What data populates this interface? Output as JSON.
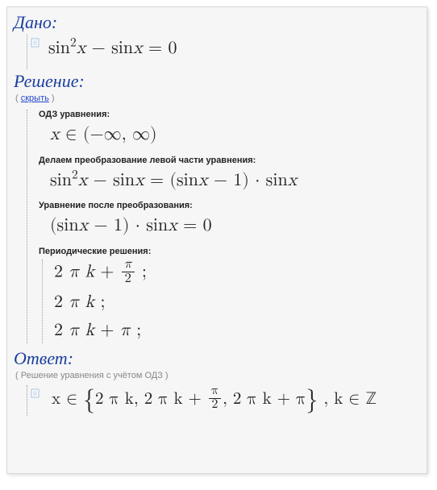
{
  "colors": {
    "background": "#f6f6f6",
    "border": "#d8d8d8",
    "title": "#1a3ea0",
    "text": "#222222",
    "muted": "#888888",
    "link": "#2244cc",
    "dotted": "#999999"
  },
  "given": {
    "title": "Дано:",
    "equation_html": "sin<span class='sup'>2</span><span class='it'>x</span> − sin<span class='it'>x</span> = 0"
  },
  "solution": {
    "title": "Решение:",
    "hide_prefix": "( ",
    "hide_link": "скрыть",
    "hide_suffix": " )",
    "domain_label": "ОДЗ уравнения:",
    "domain_html": "<span class='it'>x</span> ∈ (−∞, ∞)",
    "transform_label": "Делаем преобразование левой части уравнения:",
    "transform_html": "sin<span class='sup'>2</span><span class='it'>x</span> − sin<span class='it'>x</span> = (sin<span class='it'>x</span> − 1) · sin<span class='it'>x</span>",
    "after_label": "Уравнение после преобразования:",
    "after_html": "(sin<span class='it'>x</span> − 1) · sin<span class='it'>x</span> = 0",
    "periodic_label": "Периодические решения:",
    "periodic": [
      "2 <span class='it'>π k</span> + <span class='frac'><span class='num'><span class='it'>π</span></span><span class='den'>2</span></span> ;",
      "2 <span class='it'>π k</span> ;",
      "2 <span class='it'>π k</span> + <span class='it'>π</span> ;"
    ]
  },
  "answer": {
    "title": "Ответ:",
    "note": "( Решение уравнения с учётом ОДЗ )",
    "html": "<span class='it'>x</span> ∈ <span class='bigbrace'>{</span>2 <span class='it'>π k</span>, 2 <span class='it'>π k</span> + <span class='frac'><span class='num'><span class='it'>π</span></span><span class='den'>2</span></span>, 2 <span class='it'>π k</span> + <span class='it'>π</span><span class='bigbrace'>}</span> , <span class='it'>k</span> ∈ ℤ"
  }
}
